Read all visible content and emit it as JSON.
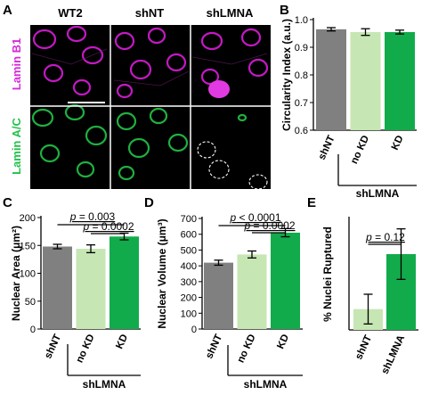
{
  "figure": {
    "panel_letters": [
      "A",
      "B",
      "C",
      "D",
      "E"
    ],
    "micrograph": {
      "column_headers": [
        "WT2",
        "shNT",
        "shLMNA"
      ],
      "row_labels": [
        "Lamin B1",
        "Lamin A/C"
      ],
      "row_colors": [
        "#d82ad8",
        "#22c24a"
      ]
    }
  },
  "chart_data": [
    {
      "panel": "B",
      "type": "bar",
      "categories": [
        "shNT",
        "no KD",
        "KD"
      ],
      "values": [
        0.965,
        0.955,
        0.955
      ],
      "errors": [
        0.006,
        0.012,
        0.007
      ],
      "colors": [
        "#808080",
        "#c6e6b3",
        "#12ab4b"
      ],
      "ylabel": "Circularity Index (a.u.)",
      "ylim": [
        0.6,
        1.0
      ],
      "yticks": [
        "0.6",
        "0.7",
        "0.8",
        "0.9",
        "1.0"
      ],
      "group_label": "shLMNA",
      "annotations": []
    },
    {
      "panel": "C",
      "type": "bar",
      "categories": [
        "shNT",
        "no KD",
        "KD"
      ],
      "values": [
        148,
        144,
        166
      ],
      "errors": [
        4,
        7,
        6
      ],
      "colors": [
        "#808080",
        "#c6e6b3",
        "#12ab4b"
      ],
      "ylabel": "Nuclear Area (μm²)",
      "ylim": [
        0,
        200
      ],
      "yticks": [
        "0",
        "50",
        "100",
        "150",
        "200"
      ],
      "group_label": "shLMNA",
      "annotations": [
        "p = 0.003",
        "p = 0.0002"
      ]
    },
    {
      "panel": "D",
      "type": "bar",
      "categories": [
        "shNT",
        "no KD",
        "KD"
      ],
      "values": [
        420,
        472,
        610
      ],
      "errors": [
        16,
        22,
        26
      ],
      "colors": [
        "#808080",
        "#c6e6b3",
        "#12ab4b"
      ],
      "ylabel": "Nuclear Volume (μm³)",
      "ylim": [
        0,
        700
      ],
      "yticks": [
        "0",
        "100",
        "200",
        "300",
        "400",
        "500",
        "600",
        "700"
      ],
      "group_label": "shLMNA",
      "annotations": [
        "p < 0.0001",
        "p = 0.0002"
      ]
    },
    {
      "panel": "E",
      "type": "bar",
      "categories": [
        "shNT",
        "shLMNA"
      ],
      "values": [
        0.14,
        0.51
      ],
      "errors": [
        0.1,
        0.17
      ],
      "colors": [
        "#c6e6b3",
        "#12ab4b"
      ],
      "ylabel": "% Nuclei Ruptured",
      "ylim": [
        0,
        0.75
      ],
      "yticks": [],
      "group_label": "",
      "annotations": [
        "p = 0.12"
      ]
    }
  ]
}
